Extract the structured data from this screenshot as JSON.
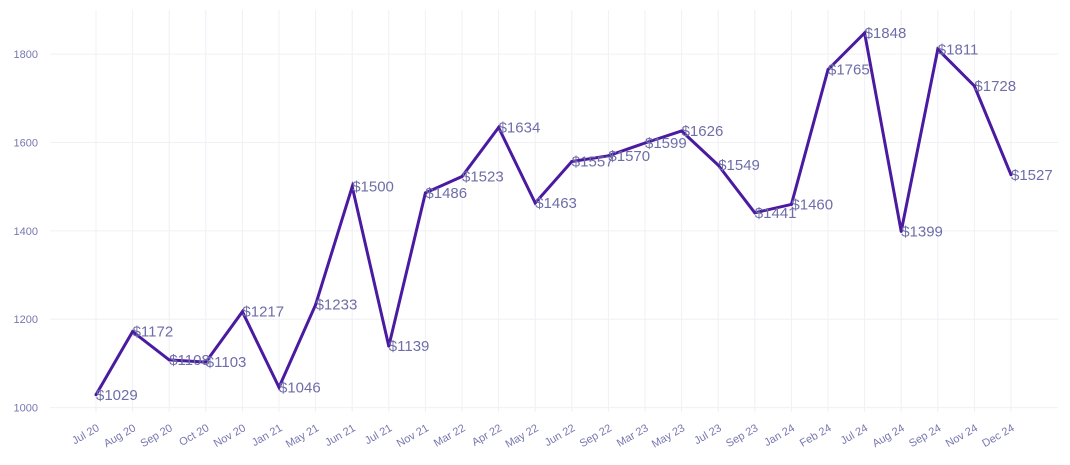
{
  "chart_data": {
    "type": "line",
    "title": "",
    "xlabel": "",
    "ylabel": "",
    "categories": [
      "Jul 20",
      "Aug 20",
      "Sep 20",
      "Oct 20",
      "Nov 20",
      "Jan 21",
      "May 21",
      "Jun 21",
      "Jul 21",
      "Nov 21",
      "Mar 22",
      "Apr 22",
      "May 22",
      "Jun 22",
      "Sep 22",
      "Mar 23",
      "May 23",
      "Jul 23",
      "Sep 23",
      "Jan 24",
      "Feb 24",
      "Jul 24",
      "Aug 24",
      "Sep 24",
      "Nov 24",
      "Dec 24"
    ],
    "values": [
      1029,
      1172,
      1108,
      1103,
      1217,
      1046,
      1233,
      1500,
      1139,
      1486,
      1523,
      1634,
      1463,
      1557,
      1570,
      1599,
      1626,
      1549,
      1441,
      1460,
      1765,
      1848,
      1399,
      1811,
      1728,
      1527
    ],
    "data_labels": [
      "$1029",
      "$1172",
      "$1108",
      "$1103",
      "$1217",
      "$1046",
      "$1233",
      "$1500",
      "$1139",
      "$1486",
      "$1523",
      "$1634",
      "$1463",
      "$1557",
      "$1570",
      "$1599",
      "$1626",
      "$1549",
      "$1441",
      "$1460",
      "$1765",
      "$1848",
      "$1399",
      "$1811",
      "$1728",
      "$1527"
    ],
    "y_ticks": [
      "1000",
      "1200",
      "1400",
      "1600",
      "1800"
    ],
    "ylim": [
      990,
      1900
    ],
    "grid": true,
    "legend": "none",
    "colors": {
      "line": "#4a1aa0",
      "data_label": "#6e6ea8",
      "tick_label": "#7777b0",
      "grid": "#f0f0f5"
    }
  }
}
